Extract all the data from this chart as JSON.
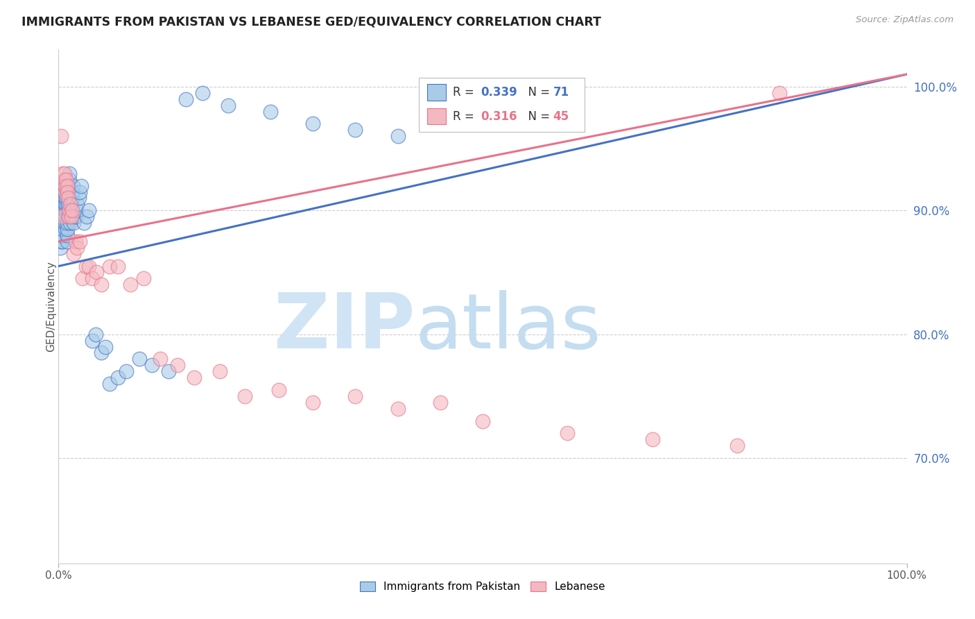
{
  "title": "IMMIGRANTS FROM PAKISTAN VS LEBANESE GED/EQUIVALENCY CORRELATION CHART",
  "source": "Source: ZipAtlas.com",
  "ylabel": "GED/Equivalency",
  "ylabel_right_ticks": [
    "100.0%",
    "90.0%",
    "80.0%",
    "70.0%"
  ],
  "ylabel_right_vals": [
    1.0,
    0.9,
    0.8,
    0.7
  ],
  "xmin": 0.0,
  "xmax": 1.0,
  "ymin": 0.615,
  "ymax": 1.03,
  "color_pakistan": "#a8cce8",
  "color_lebanese": "#f4b8c1",
  "color_trend_pakistan": "#4472c4",
  "color_trend_lebanese": "#e8728a",
  "watermark_zip": "ZIP",
  "watermark_atlas": "atlas",
  "legend_r1": "0.339",
  "legend_n1": "71",
  "legend_r2": "0.316",
  "legend_n2": "45",
  "pak_trend_x0": 0.0,
  "pak_trend_y0": 0.855,
  "pak_trend_x1": 1.0,
  "pak_trend_y1": 1.01,
  "leb_trend_x0": 0.0,
  "leb_trend_y0": 0.875,
  "leb_trend_x1": 1.0,
  "leb_trend_y1": 1.01,
  "pak_x": [
    0.002,
    0.003,
    0.003,
    0.004,
    0.004,
    0.004,
    0.005,
    0.005,
    0.005,
    0.006,
    0.006,
    0.006,
    0.007,
    0.007,
    0.007,
    0.007,
    0.008,
    0.008,
    0.008,
    0.009,
    0.009,
    0.009,
    0.01,
    0.01,
    0.01,
    0.01,
    0.011,
    0.011,
    0.011,
    0.012,
    0.012,
    0.012,
    0.013,
    0.013,
    0.014,
    0.014,
    0.015,
    0.015,
    0.016,
    0.016,
    0.017,
    0.018,
    0.019,
    0.02,
    0.021,
    0.022,
    0.024,
    0.025,
    0.027,
    0.03,
    0.033,
    0.036,
    0.04,
    0.044,
    0.05,
    0.055,
    0.06,
    0.07,
    0.08,
    0.095,
    0.11,
    0.13,
    0.15,
    0.17,
    0.2,
    0.25,
    0.3,
    0.35,
    0.4,
    0.5,
    0.55
  ],
  "pak_y": [
    0.87,
    0.875,
    0.88,
    0.91,
    0.915,
    0.92,
    0.875,
    0.88,
    0.885,
    0.89,
    0.895,
    0.9,
    0.905,
    0.91,
    0.915,
    0.92,
    0.885,
    0.89,
    0.895,
    0.9,
    0.905,
    0.91,
    0.875,
    0.88,
    0.885,
    0.89,
    0.895,
    0.9,
    0.905,
    0.91,
    0.915,
    0.92,
    0.925,
    0.93,
    0.89,
    0.895,
    0.9,
    0.905,
    0.91,
    0.915,
    0.92,
    0.89,
    0.895,
    0.895,
    0.9,
    0.905,
    0.91,
    0.915,
    0.92,
    0.89,
    0.895,
    0.9,
    0.795,
    0.8,
    0.785,
    0.79,
    0.76,
    0.765,
    0.77,
    0.78,
    0.775,
    0.77,
    0.99,
    0.995,
    0.985,
    0.98,
    0.97,
    0.965,
    0.96,
    0.995,
    0.99
  ],
  "leb_x": [
    0.003,
    0.004,
    0.005,
    0.006,
    0.007,
    0.008,
    0.008,
    0.009,
    0.01,
    0.01,
    0.011,
    0.012,
    0.013,
    0.014,
    0.015,
    0.016,
    0.018,
    0.02,
    0.022,
    0.025,
    0.028,
    0.032,
    0.036,
    0.04,
    0.045,
    0.05,
    0.06,
    0.07,
    0.085,
    0.1,
    0.12,
    0.14,
    0.16,
    0.19,
    0.22,
    0.26,
    0.3,
    0.35,
    0.4,
    0.45,
    0.5,
    0.6,
    0.7,
    0.8,
    0.85
  ],
  "leb_y": [
    0.96,
    0.895,
    0.93,
    0.925,
    0.93,
    0.915,
    0.92,
    0.925,
    0.92,
    0.915,
    0.91,
    0.895,
    0.9,
    0.905,
    0.895,
    0.9,
    0.865,
    0.875,
    0.87,
    0.875,
    0.845,
    0.855,
    0.855,
    0.845,
    0.85,
    0.84,
    0.855,
    0.855,
    0.84,
    0.845,
    0.78,
    0.775,
    0.765,
    0.77,
    0.75,
    0.755,
    0.745,
    0.75,
    0.74,
    0.745,
    0.73,
    0.72,
    0.715,
    0.71,
    0.995
  ]
}
